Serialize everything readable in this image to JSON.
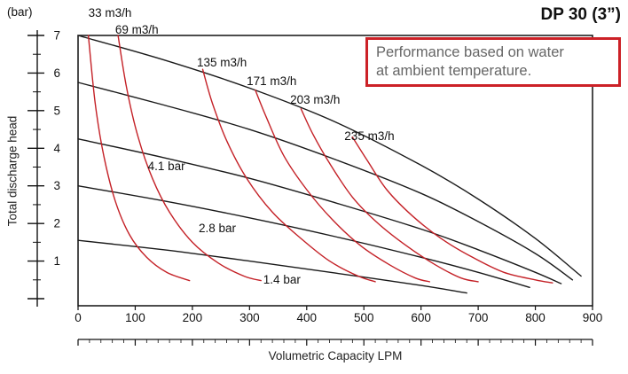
{
  "title": "DP 30 (3”)",
  "note_lines": [
    "Performance based on water",
    "at ambient temperature."
  ],
  "y_axis": {
    "unit_label": "(bar)",
    "title": "Total discharge head",
    "ticks": [
      7,
      6,
      5,
      4,
      3,
      2,
      1
    ]
  },
  "x_axis": {
    "title": "Volumetric Capacity LPM",
    "ticks": [
      0,
      100,
      200,
      300,
      400,
      500,
      600,
      700,
      800,
      900
    ]
  },
  "colors": {
    "pressure_curve": "#1a1a1a",
    "air_curve": "#c42127",
    "note_border": "#cc2127",
    "note_text": "#666666"
  },
  "chart_data": {
    "type": "line",
    "title": "DP 30 (3”)",
    "xlabel": "Volumetric Capacity LPM",
    "ylabel": "Total discharge head (bar)",
    "xlim": [
      0,
      900
    ],
    "ylim": [
      0,
      7
    ],
    "grid": false,
    "legend": "labels-on-curves",
    "series": [
      {
        "label": "",
        "role": "pressure",
        "points": [
          [
            0,
            7.0
          ],
          [
            150,
            6.35
          ],
          [
            300,
            5.6
          ],
          [
            450,
            4.7
          ],
          [
            600,
            3.55
          ],
          [
            700,
            2.65
          ],
          [
            800,
            1.6
          ],
          [
            880,
            0.6
          ]
        ]
      },
      {
        "label": "",
        "role": "pressure",
        "points": [
          [
            0,
            5.75
          ],
          [
            150,
            5.15
          ],
          [
            300,
            4.5
          ],
          [
            450,
            3.7
          ],
          [
            600,
            2.8
          ],
          [
            700,
            2.05
          ],
          [
            800,
            1.2
          ],
          [
            865,
            0.5
          ]
        ]
      },
      {
        "label": "4.1 bar",
        "role": "pressure",
        "points": [
          [
            0,
            4.25
          ],
          [
            150,
            3.75
          ],
          [
            300,
            3.2
          ],
          [
            450,
            2.55
          ],
          [
            600,
            1.85
          ],
          [
            700,
            1.3
          ],
          [
            800,
            0.7
          ],
          [
            845,
            0.4
          ]
        ]
      },
      {
        "label": "2.8 bar",
        "role": "pressure",
        "points": [
          [
            0,
            3.0
          ],
          [
            150,
            2.6
          ],
          [
            300,
            2.15
          ],
          [
            450,
            1.65
          ],
          [
            600,
            1.1
          ],
          [
            700,
            0.7
          ],
          [
            790,
            0.3
          ]
        ]
      },
      {
        "label": "1.4 bar",
        "role": "pressure",
        "points": [
          [
            0,
            1.55
          ],
          [
            150,
            1.3
          ],
          [
            300,
            1.0
          ],
          [
            450,
            0.68
          ],
          [
            600,
            0.35
          ],
          [
            680,
            0.15
          ]
        ]
      },
      {
        "label": "33 m3/h",
        "role": "air",
        "points": [
          [
            18,
            7.0
          ],
          [
            30,
            5.2
          ],
          [
            45,
            3.8
          ],
          [
            65,
            2.6
          ],
          [
            90,
            1.7
          ],
          [
            120,
            1.1
          ],
          [
            155,
            0.7
          ],
          [
            195,
            0.48
          ]
        ]
      },
      {
        "label": "69 m3/h",
        "role": "air",
        "points": [
          [
            70,
            7.0
          ],
          [
            85,
            5.6
          ],
          [
            105,
            4.3
          ],
          [
            130,
            3.2
          ],
          [
            160,
            2.3
          ],
          [
            200,
            1.5
          ],
          [
            245,
            0.95
          ],
          [
            290,
            0.6
          ],
          [
            320,
            0.48
          ]
        ]
      },
      {
        "label": "135 m3/h",
        "role": "air",
        "points": [
          [
            218,
            6.1
          ],
          [
            235,
            5.2
          ],
          [
            260,
            4.2
          ],
          [
            295,
            3.2
          ],
          [
            340,
            2.3
          ],
          [
            390,
            1.6
          ],
          [
            440,
            1.0
          ],
          [
            490,
            0.6
          ],
          [
            520,
            0.45
          ]
        ]
      },
      {
        "label": "171 m3/h",
        "role": "air",
        "points": [
          [
            310,
            5.55
          ],
          [
            330,
            4.8
          ],
          [
            360,
            3.8
          ],
          [
            400,
            2.9
          ],
          [
            445,
            2.1
          ],
          [
            495,
            1.4
          ],
          [
            545,
            0.9
          ],
          [
            590,
            0.55
          ],
          [
            615,
            0.45
          ]
        ]
      },
      {
        "label": "203 m3/h",
        "role": "air",
        "points": [
          [
            390,
            5.05
          ],
          [
            410,
            4.4
          ],
          [
            440,
            3.6
          ],
          [
            480,
            2.7
          ],
          [
            525,
            2.0
          ],
          [
            575,
            1.4
          ],
          [
            625,
            0.9
          ],
          [
            670,
            0.55
          ],
          [
            700,
            0.45
          ]
        ]
      },
      {
        "label": "235 m3/h",
        "role": "air",
        "points": [
          [
            480,
            4.3
          ],
          [
            505,
            3.7
          ],
          [
            540,
            2.9
          ],
          [
            585,
            2.2
          ],
          [
            635,
            1.6
          ],
          [
            690,
            1.1
          ],
          [
            745,
            0.7
          ],
          [
            800,
            0.5
          ],
          [
            830,
            0.42
          ]
        ]
      }
    ],
    "annotations": [
      {
        "text": "33 m3/h",
        "x": 18,
        "y": 7.5
      },
      {
        "text": "69 m3/h",
        "x": 65,
        "y": 7.05
      },
      {
        "text": "135 m3/h",
        "x": 208,
        "y": 6.17
      },
      {
        "text": "171 m3/h",
        "x": 295,
        "y": 5.68
      },
      {
        "text": "203 m3/h",
        "x": 371,
        "y": 5.18
      },
      {
        "text": "235 m3/h",
        "x": 466,
        "y": 4.22
      },
      {
        "text": "4.1 bar",
        "x": 122,
        "y": 3.42
      },
      {
        "text": "2.8 bar",
        "x": 211,
        "y": 1.77
      },
      {
        "text": "1.4 bar",
        "x": 324,
        "y": 0.4
      }
    ]
  }
}
